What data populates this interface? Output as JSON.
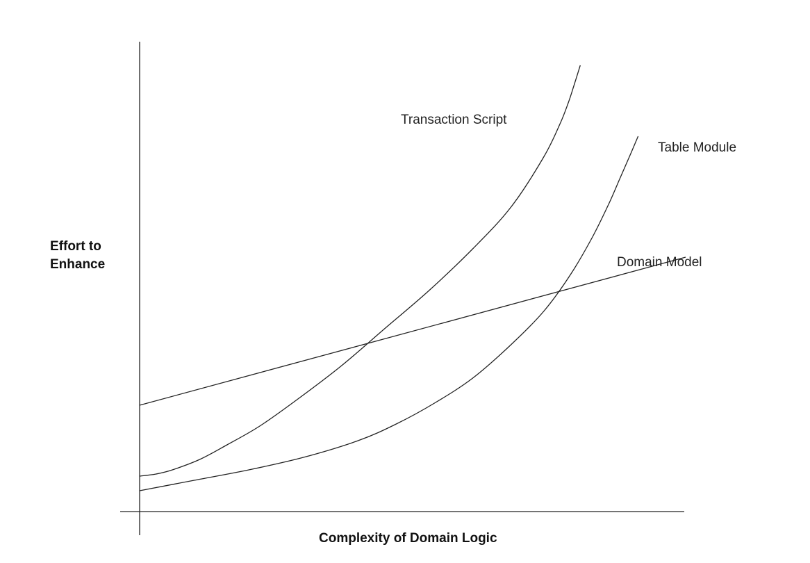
{
  "chart_data": {
    "type": "line",
    "title": "",
    "xlabel": "Complexity of Domain Logic",
    "ylabel_lines": [
      "Effort to",
      "Enhance"
    ],
    "xlim": [
      0,
      100
    ],
    "ylim": [
      0,
      100
    ],
    "grid": false,
    "legend": "none",
    "series": [
      {
        "name": "Transaction Script",
        "x": [
          0,
          3,
          6,
          11,
          16,
          22,
          29,
          37,
          45,
          53,
          61,
          68,
          74,
          77,
          78.5,
          79.5,
          80.7
        ],
        "y": [
          8.5,
          9,
          10,
          12.5,
          16,
          20.5,
          27,
          35,
          44,
          53,
          63,
          73,
          85,
          93,
          98,
          102,
          107
        ]
      },
      {
        "name": "Table Module",
        "x": [
          0,
          10,
          20,
          30,
          40,
          47,
          54,
          61,
          68,
          74,
          79,
          83,
          86,
          88,
          90,
          91.3
        ],
        "y": [
          5,
          7.5,
          10,
          13,
          17,
          21,
          26,
          32,
          40,
          48,
          57,
          66,
          74,
          80,
          86,
          90
        ]
      },
      {
        "name": "Domain Model",
        "x": [
          0,
          100
        ],
        "y": [
          25.5,
          61
        ]
      }
    ],
    "annotations": [
      {
        "text": "Transaction Script",
        "series": 0
      },
      {
        "text": "Table Module",
        "series": 1
      },
      {
        "text": "Domain Model",
        "series": 2
      }
    ]
  }
}
